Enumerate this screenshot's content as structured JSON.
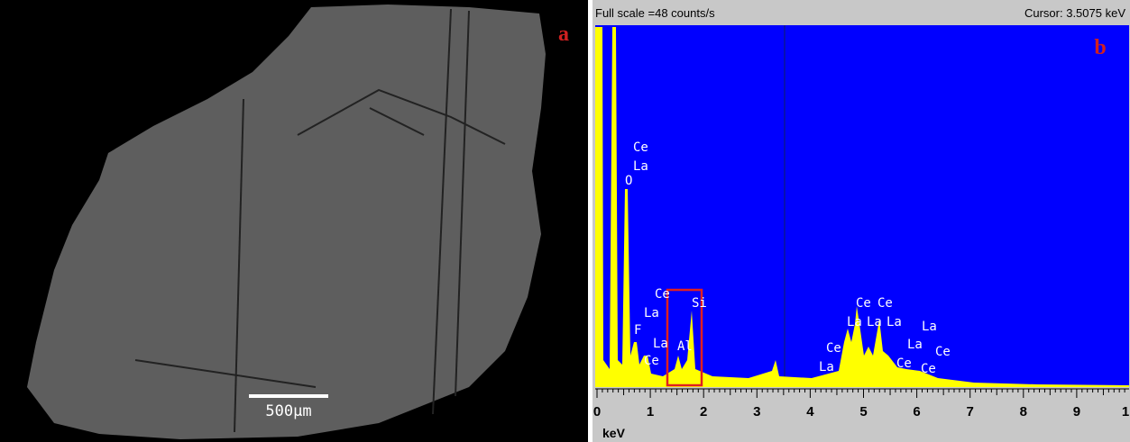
{
  "panel_a": {
    "label": "a",
    "scale_bar": "500μm"
  },
  "panel_b": {
    "label": "b",
    "header": {
      "full_scale": "Full scale =48  counts/s",
      "cursor": "Cursor: 3.5075 keV"
    },
    "axis": {
      "unit": "keV",
      "ticks": [
        "0",
        "1",
        "2",
        "3",
        "4",
        "5",
        "6",
        "7",
        "8",
        "9",
        "1"
      ]
    },
    "peak_labels": [
      "Ce",
      "La",
      "O",
      "Ce",
      "La",
      "F",
      "La",
      "Ce",
      "Al",
      "Si",
      "Ce",
      "La",
      "Ce",
      "Ce",
      "La",
      "La",
      "La",
      "La",
      "Ce",
      "La",
      "Ce",
      "Ce"
    ]
  }
}
